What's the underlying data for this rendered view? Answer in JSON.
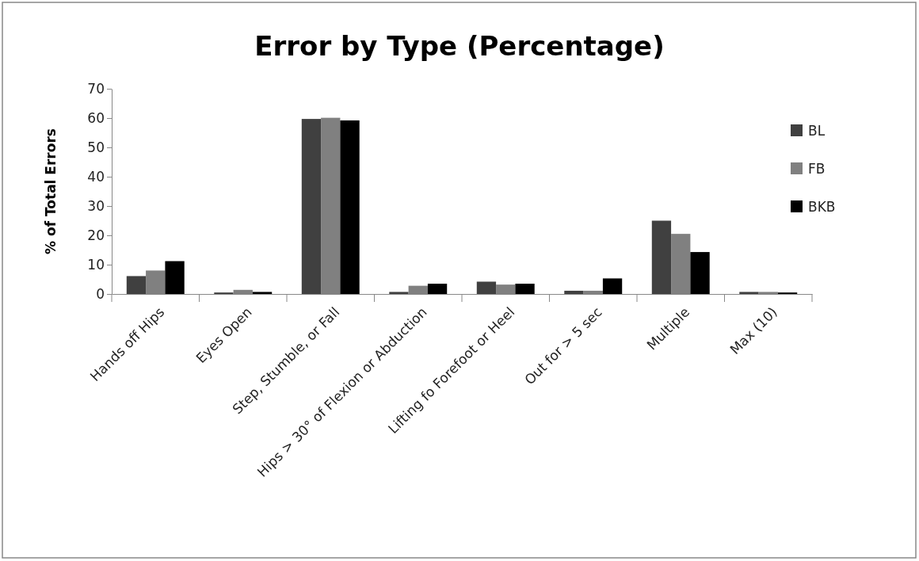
{
  "chart_data": {
    "type": "bar",
    "title": "Error by Type (Percentage)",
    "ylabel": "% of Total Errors",
    "categories": [
      "Hands off Hips",
      "Eyes Open",
      "Step, Stumble, or Fall",
      "Hips > 30° of Flexion or Abduction",
      "Lifting fo Forefoot or Heel",
      "Out for > 5 sec",
      "Multiple",
      "Max (10)"
    ],
    "series": [
      {
        "name": "BL",
        "color": "#404040",
        "values": [
          6.1,
          0.5,
          59.7,
          0.7,
          4.2,
          1.1,
          25.0,
          0.7
        ]
      },
      {
        "name": "FB",
        "color": "#808080",
        "values": [
          8.0,
          1.4,
          60.1,
          2.8,
          3.2,
          1.1,
          20.5,
          0.7
        ]
      },
      {
        "name": "BKB",
        "color": "#000000",
        "values": [
          11.2,
          0.7,
          59.2,
          3.5,
          3.5,
          5.3,
          14.3,
          0.5
        ]
      }
    ],
    "ylim": [
      0,
      70
    ],
    "yticks": [
      0,
      10,
      20,
      30,
      40,
      50,
      60,
      70
    ],
    "grid": false,
    "legend": "right"
  }
}
